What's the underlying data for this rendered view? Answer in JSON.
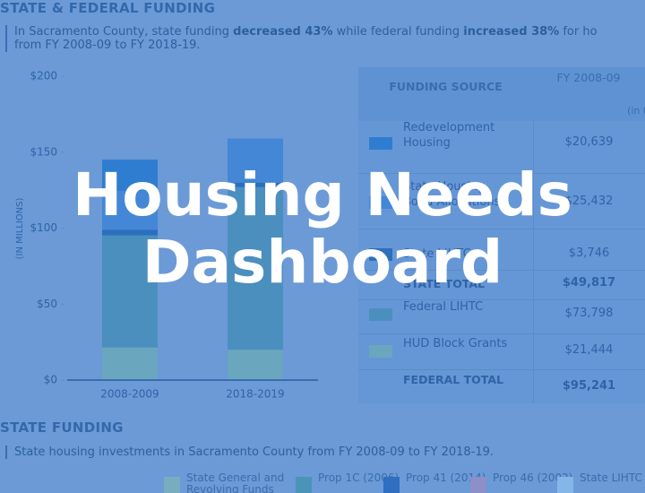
{
  "header": {
    "title": "STATE & FEDERAL FUNDING",
    "summary": [
      "In Sacramento County, state funding ",
      "decreased 43%",
      " while federal funding ",
      "increased 38%",
      " for ho",
      "from FY 2008-09 to FY 2018-19."
    ]
  },
  "chart_data": {
    "type": "bar",
    "stacked": true,
    "y_label": "(IN MILLIONS)",
    "categories": [
      "2008-2009",
      "2018-2019"
    ],
    "series": [
      {
        "name": "HUD Block Grants",
        "color": "#6aa6bd",
        "values": [
          21.444,
          20
        ]
      },
      {
        "name": "Federal LIHTC",
        "color": "#4b8fbf",
        "values": [
          73.798,
          107
        ]
      },
      {
        "name": "State LIHTC",
        "color": "#2c6fbd",
        "values": [
          3.746,
          3
        ]
      },
      {
        "name": "State Housing Bond Allocations",
        "color": "#4387d6",
        "values": [
          25.432,
          29
        ]
      },
      {
        "name": "Redevelopment Housing",
        "color": "#2f7dd0",
        "values": [
          20.639,
          0
        ]
      }
    ],
    "ylim": [
      0,
      200
    ],
    "yticks": [
      {
        "value": 0,
        "label": "$0"
      },
      {
        "value": 50,
        "label": "$50"
      },
      {
        "value": 100,
        "label": "$100"
      },
      {
        "value": 150,
        "label": "$150"
      },
      {
        "value": 200,
        "label": "$200"
      }
    ]
  },
  "table": {
    "headers": [
      "FUNDING SOURCE",
      "FY 2008-09",
      "(in tho"
    ],
    "rows": [
      [
        "Redevelopment Housing",
        "$20,639"
      ],
      [
        "State Housing Bond Allocations",
        "$25,432"
      ],
      [
        "State LIHTC",
        "$3,746"
      ],
      [
        "STATE TOTAL",
        "$49,817"
      ],
      [
        "Federal LIHTC",
        "$73,798"
      ],
      [
        "HUD Block Grants",
        "$21,444"
      ],
      [
        "FEDERAL TOTAL",
        "$95,241"
      ]
    ]
  },
  "state_section": {
    "title": "STATE FUNDING",
    "summary": "State housing investments in Sacramento County from FY 2008-09 to FY 2018-19.",
    "legend": [
      {
        "label": "State General and Revolving Funds",
        "color": "#78adc0"
      },
      {
        "label": "Prop 1C (2006)",
        "color": "#4b93b8"
      },
      {
        "label": "Prop 41 (2014)",
        "color": "#2f6ec0"
      },
      {
        "label": "Prop 46 (2002)",
        "color": "#8c8fc8"
      },
      {
        "label": "State LIHTC",
        "color": "#84b6ea"
      }
    ]
  },
  "overlay": {
    "title": "Housing Needs Dashboard"
  }
}
